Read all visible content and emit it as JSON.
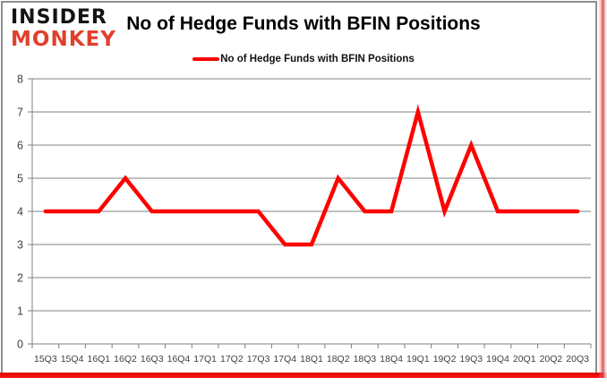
{
  "logo": {
    "line1": "INSIDER",
    "line2": "MONKEY"
  },
  "header": {
    "title": "No of Hedge Funds with BFIN Positions"
  },
  "legend": {
    "label": "No of Hedge Funds with BFIN Positions"
  },
  "colors": {
    "series": "#FF0000",
    "grid": "#808080",
    "axis_text": "#3f3f3f",
    "logo_primary": "#141414",
    "logo_accent": "#E0402C",
    "frame_bottom": "#FF0000"
  },
  "chart_data": {
    "type": "line",
    "title": "No of Hedge Funds with BFIN Positions",
    "categories": [
      "15Q3",
      "15Q4",
      "16Q1",
      "16Q2",
      "16Q3",
      "16Q4",
      "17Q1",
      "17Q2",
      "17Q3",
      "17Q4",
      "18Q1",
      "18Q2",
      "18Q3",
      "18Q4",
      "19Q1",
      "19Q2",
      "19Q3",
      "19Q4",
      "20Q1",
      "20Q2",
      "20Q3"
    ],
    "series": [
      {
        "name": "No of Hedge Funds with BFIN Positions",
        "values": [
          4,
          4,
          4,
          5,
          4,
          4,
          4,
          4,
          4,
          3,
          3,
          5,
          4,
          4,
          7,
          4,
          6,
          4,
          4,
          4,
          4
        ]
      }
    ],
    "xlabel": "",
    "ylabel": "",
    "ylim": [
      0,
      8
    ],
    "yticks": [
      0,
      1,
      2,
      3,
      4,
      5,
      6,
      7,
      8
    ],
    "grid": true,
    "legend_position": "top-center"
  }
}
